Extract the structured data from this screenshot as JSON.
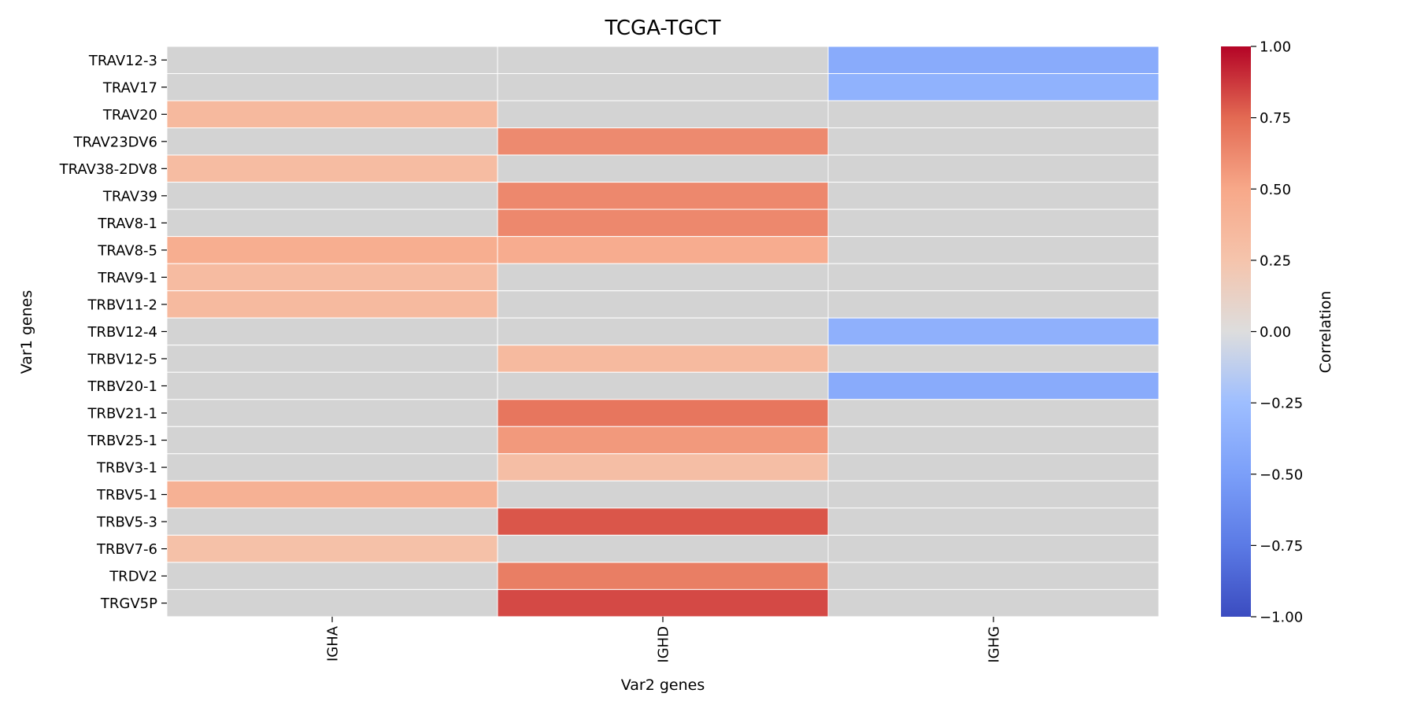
{
  "chart_data": {
    "type": "heatmap",
    "title": "TCGA-TGCT",
    "xlabel": "Var2 genes",
    "ylabel": "Var1 genes",
    "x_categories": [
      "IGHA",
      "IGHD",
      "IGHG"
    ],
    "y_categories": [
      "TRAV12-3",
      "TRAV17",
      "TRAV20",
      "TRAV23DV6",
      "TRAV38-2DV8",
      "TRAV39",
      "TRAV8-1",
      "TRAV8-5",
      "TRAV9-1",
      "TRBV11-2",
      "TRBV12-4",
      "TRBV12-5",
      "TRBV20-1",
      "TRBV21-1",
      "TRBV25-1",
      "TRBV3-1",
      "TRBV5-1",
      "TRBV5-3",
      "TRBV7-6",
      "TRDV2",
      "TRGV5P"
    ],
    "values": [
      [
        null,
        null,
        -0.4
      ],
      [
        null,
        null,
        -0.35
      ],
      [
        0.35,
        null,
        null
      ],
      [
        null,
        0.62,
        null
      ],
      [
        0.32,
        null,
        null
      ],
      [
        null,
        0.63,
        null
      ],
      [
        null,
        0.63,
        null
      ],
      [
        0.45,
        0.46,
        null
      ],
      [
        0.33,
        null,
        null
      ],
      [
        0.34,
        null,
        null
      ],
      [
        null,
        null,
        -0.36
      ],
      [
        null,
        0.34,
        null
      ],
      [
        null,
        null,
        -0.4
      ],
      [
        null,
        0.7,
        null
      ],
      [
        null,
        0.56,
        null
      ],
      [
        null,
        0.3,
        null
      ],
      [
        0.42,
        null,
        null
      ],
      [
        null,
        0.8,
        null
      ],
      [
        0.28,
        null,
        null
      ],
      [
        null,
        0.67,
        null
      ],
      [
        null,
        0.83,
        null
      ]
    ],
    "missing_color": "#d3d3d3",
    "colormap": "coolwarm",
    "vmin": -1.0,
    "vmax": 1.0,
    "colorbar": {
      "label": "Correlation",
      "ticks": [
        1.0,
        0.75,
        0.5,
        0.25,
        0.0,
        -0.25,
        -0.5,
        -0.75,
        -1.0
      ],
      "tick_labels": [
        "1.00",
        "0.75",
        "0.50",
        "0.25",
        "0.00",
        "−0.25",
        "−0.50",
        "−0.75",
        "−1.00"
      ]
    },
    "legend": "colorbar-right"
  }
}
